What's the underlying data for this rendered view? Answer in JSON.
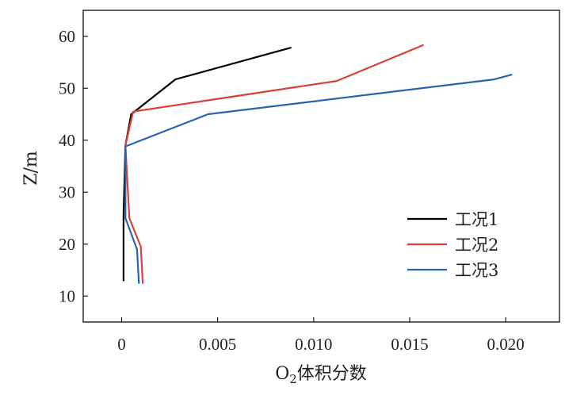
{
  "chart_data": {
    "type": "line",
    "xlabel_main": "O",
    "xlabel_sub": "2",
    "xlabel_rest": "体积分数",
    "ylabel": "Z/m",
    "xlim": [
      -0.002,
      0.0228
    ],
    "ylim": [
      5,
      65
    ],
    "xticks": [
      0,
      0.005,
      0.01,
      0.015,
      0.02
    ],
    "xtick_labels": [
      "0",
      "0.005",
      "0.010",
      "0.015",
      "0.020"
    ],
    "yticks": [
      10,
      20,
      30,
      40,
      50,
      60
    ],
    "ytick_labels": [
      "10",
      "20",
      "30",
      "40",
      "50",
      "60"
    ],
    "grid": false,
    "legend_position": "bottom-right",
    "series": [
      {
        "name": "工况1",
        "color": "#000000",
        "x": [
          0.0001,
          0.0001,
          0.0002,
          0.0005,
          0.0028,
          0.0088
        ],
        "y": [
          13,
          25.5,
          39,
          45,
          51.7,
          57.8
        ]
      },
      {
        "name": "工况2",
        "color": "#d9403a",
        "x": [
          0.0011,
          0.001,
          0.0004,
          0.0002,
          0.0006,
          0.0112,
          0.0157
        ],
        "y": [
          12.5,
          19.5,
          25,
          39,
          45.5,
          51.4,
          58.3
        ]
      },
      {
        "name": "工况3",
        "color": "#2b63ad",
        "x": [
          0.0009,
          0.0008,
          0.0002,
          0.0002,
          0.0045,
          0.0194,
          0.0203
        ],
        "y": [
          12.5,
          19,
          25,
          38.8,
          45,
          51.7,
          52.6
        ]
      }
    ]
  }
}
